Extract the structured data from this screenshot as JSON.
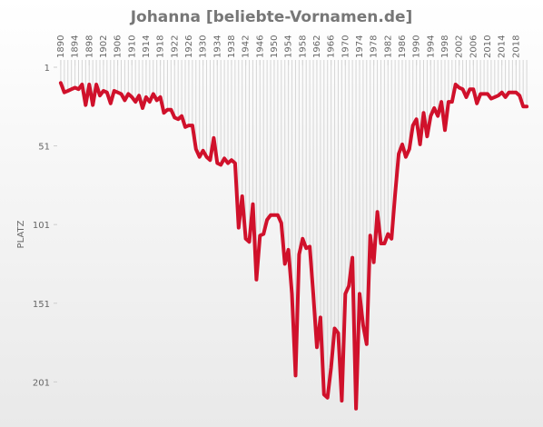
{
  "chart_data": {
    "type": "line",
    "title": "Johanna [beliebte-Vornamen.de]",
    "y_label": "PLATZ",
    "x": [
      1890,
      1891,
      1892,
      1893,
      1894,
      1895,
      1896,
      1897,
      1898,
      1899,
      1900,
      1901,
      1902,
      1903,
      1904,
      1905,
      1906,
      1907,
      1908,
      1909,
      1910,
      1911,
      1912,
      1913,
      1914,
      1915,
      1916,
      1917,
      1918,
      1919,
      1920,
      1921,
      1922,
      1923,
      1924,
      1925,
      1926,
      1927,
      1928,
      1929,
      1930,
      1931,
      1932,
      1933,
      1934,
      1935,
      1936,
      1937,
      1938,
      1939,
      1940,
      1941,
      1942,
      1943,
      1944,
      1945,
      1946,
      1947,
      1948,
      1949,
      1950,
      1951,
      1952,
      1953,
      1954,
      1955,
      1956,
      1957,
      1958,
      1959,
      1960,
      1961,
      1962,
      1963,
      1964,
      1965,
      1966,
      1967,
      1968,
      1969,
      1970,
      1971,
      1972,
      1973,
      1974,
      1975,
      1976,
      1977,
      1978,
      1979,
      1980,
      1981,
      1982,
      1983,
      1984,
      1985,
      1986,
      1987,
      1988,
      1989,
      1990,
      1991,
      1992,
      1993,
      1994,
      1995,
      1996,
      1997,
      1998,
      1999,
      2000,
      2001,
      2002,
      2003,
      2004,
      2005,
      2006,
      2007,
      2008,
      2009,
      2010,
      2011,
      2012,
      2013,
      2014,
      2015,
      2016,
      2017,
      2018,
      2019,
      2020,
      2021
    ],
    "series": [
      {
        "color": "#d0112b",
        "values": [
          11,
          17,
          16,
          15,
          14,
          15,
          12,
          25,
          12,
          25,
          12,
          19,
          16,
          17,
          24,
          16,
          17,
          18,
          22,
          18,
          20,
          23,
          19,
          27,
          20,
          23,
          18,
          22,
          20,
          30,
          28,
          28,
          33,
          34,
          32,
          39,
          38,
          38,
          53,
          58,
          54,
          58,
          60,
          46,
          62,
          63,
          59,
          62,
          60,
          62,
          103,
          83,
          110,
          112,
          88,
          136,
          108,
          107,
          98,
          95,
          95,
          95,
          100,
          126,
          117,
          145,
          197,
          120,
          110,
          116,
          115,
          145,
          179,
          160,
          209,
          211,
          192,
          167,
          170,
          213,
          145,
          140,
          122,
          218,
          145,
          165,
          177,
          108,
          125,
          93,
          113,
          113,
          107,
          110,
          82,
          56,
          50,
          58,
          53,
          38,
          34,
          50,
          30,
          45,
          32,
          27,
          32,
          23,
          41,
          23,
          23,
          12,
          14,
          15,
          20,
          15,
          15,
          24,
          18,
          18,
          18,
          21,
          20,
          19,
          17,
          20,
          17,
          17,
          17,
          19,
          26,
          26
        ]
      }
    ],
    "xlim": [
      1889,
      2022
    ],
    "xticks": [
      1890,
      1894,
      1898,
      1902,
      1906,
      1910,
      1914,
      1918,
      1922,
      1926,
      1930,
      1934,
      1938,
      1942,
      1946,
      1950,
      1954,
      1958,
      1962,
      1966,
      1970,
      1974,
      1978,
      1982,
      1986,
      1990,
      1994,
      1998,
      2002,
      2006,
      2010,
      2014,
      2018
    ],
    "ylim": [
      1,
      221
    ],
    "y_reversed": true,
    "yticks": [
      1,
      51,
      101,
      151,
      201
    ],
    "drop_lines": true
  }
}
